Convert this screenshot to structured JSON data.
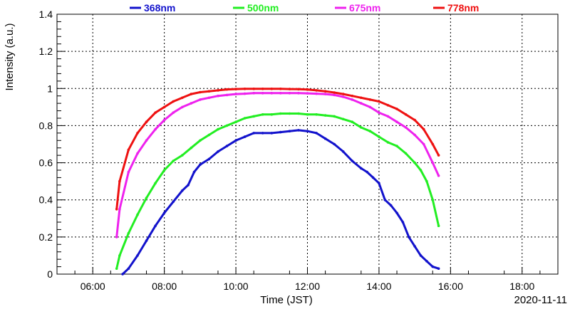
{
  "chart_data": {
    "type": "scatter",
    "xlabel": "Time (JST)",
    "ylabel": "Intensity (a.u.)",
    "date_label": "2020-11-11",
    "xlim": [
      "05:00",
      "19:00"
    ],
    "ylim": [
      0,
      1.4
    ],
    "x_ticks": [
      "06:00",
      "08:00",
      "10:00",
      "12:00",
      "14:00",
      "16:00",
      "18:00"
    ],
    "y_ticks": [
      "0",
      "0.2",
      "0.4",
      "0.6",
      "0.8",
      "1",
      "1.2",
      "1.4"
    ],
    "grid": true,
    "legend_position": "top",
    "series": [
      {
        "name": "368nm",
        "color": "#1212cc",
        "points": [
          [
            "06:50",
            0.0
          ],
          [
            "07:00",
            0.03
          ],
          [
            "07:15",
            0.1
          ],
          [
            "07:30",
            0.18
          ],
          [
            "07:45",
            0.26
          ],
          [
            "08:00",
            0.33
          ],
          [
            "08:15",
            0.39
          ],
          [
            "08:30",
            0.45
          ],
          [
            "08:40",
            0.48
          ],
          [
            "08:50",
            0.55
          ],
          [
            "09:00",
            0.59
          ],
          [
            "09:15",
            0.62
          ],
          [
            "09:30",
            0.66
          ],
          [
            "09:45",
            0.69
          ],
          [
            "10:00",
            0.72
          ],
          [
            "10:15",
            0.74
          ],
          [
            "10:30",
            0.76
          ],
          [
            "10:45",
            0.76
          ],
          [
            "11:00",
            0.76
          ],
          [
            "11:15",
            0.765
          ],
          [
            "11:30",
            0.77
          ],
          [
            "11:45",
            0.775
          ],
          [
            "12:00",
            0.77
          ],
          [
            "12:15",
            0.76
          ],
          [
            "12:30",
            0.73
          ],
          [
            "12:45",
            0.7
          ],
          [
            "13:00",
            0.66
          ],
          [
            "13:15",
            0.61
          ],
          [
            "13:30",
            0.57
          ],
          [
            "13:40",
            0.55
          ],
          [
            "13:50",
            0.52
          ],
          [
            "14:00",
            0.49
          ],
          [
            "14:10",
            0.4
          ],
          [
            "14:20",
            0.37
          ],
          [
            "14:30",
            0.33
          ],
          [
            "14:40",
            0.28
          ],
          [
            "14:50",
            0.2
          ],
          [
            "15:00",
            0.15
          ],
          [
            "15:10",
            0.1
          ],
          [
            "15:20",
            0.07
          ],
          [
            "15:30",
            0.04
          ],
          [
            "15:40",
            0.03
          ]
        ]
      },
      {
        "name": "500nm",
        "color": "#22ee22",
        "points": [
          [
            "06:40",
            0.03
          ],
          [
            "06:45",
            0.1
          ],
          [
            "07:00",
            0.22
          ],
          [
            "07:15",
            0.32
          ],
          [
            "07:30",
            0.41
          ],
          [
            "07:45",
            0.49
          ],
          [
            "08:00",
            0.56
          ],
          [
            "08:15",
            0.61
          ],
          [
            "08:30",
            0.64
          ],
          [
            "08:45",
            0.68
          ],
          [
            "09:00",
            0.72
          ],
          [
            "09:15",
            0.75
          ],
          [
            "09:30",
            0.78
          ],
          [
            "09:45",
            0.8
          ],
          [
            "10:00",
            0.82
          ],
          [
            "10:15",
            0.84
          ],
          [
            "10:30",
            0.85
          ],
          [
            "10:45",
            0.86
          ],
          [
            "11:00",
            0.86
          ],
          [
            "11:15",
            0.865
          ],
          [
            "11:30",
            0.865
          ],
          [
            "11:45",
            0.865
          ],
          [
            "12:00",
            0.86
          ],
          [
            "12:15",
            0.86
          ],
          [
            "12:30",
            0.855
          ],
          [
            "12:45",
            0.85
          ],
          [
            "13:00",
            0.835
          ],
          [
            "13:15",
            0.82
          ],
          [
            "13:30",
            0.79
          ],
          [
            "13:45",
            0.77
          ],
          [
            "14:00",
            0.74
          ],
          [
            "14:15",
            0.71
          ],
          [
            "14:30",
            0.69
          ],
          [
            "14:45",
            0.65
          ],
          [
            "15:00",
            0.6
          ],
          [
            "15:10",
            0.56
          ],
          [
            "15:20",
            0.5
          ],
          [
            "15:30",
            0.4
          ],
          [
            "15:40",
            0.26
          ]
        ]
      },
      {
        "name": "675nm",
        "color": "#ee22ee",
        "points": [
          [
            "06:40",
            0.2
          ],
          [
            "06:45",
            0.35
          ],
          [
            "07:00",
            0.55
          ],
          [
            "07:15",
            0.65
          ],
          [
            "07:30",
            0.72
          ],
          [
            "07:45",
            0.78
          ],
          [
            "08:00",
            0.83
          ],
          [
            "08:15",
            0.87
          ],
          [
            "08:30",
            0.9
          ],
          [
            "08:45",
            0.92
          ],
          [
            "09:00",
            0.94
          ],
          [
            "09:15",
            0.95
          ],
          [
            "09:30",
            0.96
          ],
          [
            "09:45",
            0.965
          ],
          [
            "10:00",
            0.97
          ],
          [
            "10:15",
            0.972
          ],
          [
            "10:30",
            0.975
          ],
          [
            "10:45",
            0.975
          ],
          [
            "11:00",
            0.975
          ],
          [
            "11:15",
            0.975
          ],
          [
            "11:30",
            0.975
          ],
          [
            "11:45",
            0.975
          ],
          [
            "12:00",
            0.974
          ],
          [
            "12:15",
            0.972
          ],
          [
            "12:30",
            0.97
          ],
          [
            "12:45",
            0.965
          ],
          [
            "13:00",
            0.955
          ],
          [
            "13:15",
            0.94
          ],
          [
            "13:30",
            0.92
          ],
          [
            "13:45",
            0.9
          ],
          [
            "14:00",
            0.87
          ],
          [
            "14:15",
            0.85
          ],
          [
            "14:30",
            0.82
          ],
          [
            "14:45",
            0.79
          ],
          [
            "15:00",
            0.75
          ],
          [
            "15:15",
            0.7
          ],
          [
            "15:30",
            0.6
          ],
          [
            "15:40",
            0.53
          ]
        ]
      },
      {
        "name": "778nm",
        "color": "#ee1111",
        "points": [
          [
            "06:40",
            0.35
          ],
          [
            "06:45",
            0.5
          ],
          [
            "07:00",
            0.67
          ],
          [
            "07:15",
            0.76
          ],
          [
            "07:30",
            0.82
          ],
          [
            "07:45",
            0.87
          ],
          [
            "08:00",
            0.9
          ],
          [
            "08:15",
            0.93
          ],
          [
            "08:30",
            0.95
          ],
          [
            "08:45",
            0.97
          ],
          [
            "09:00",
            0.98
          ],
          [
            "09:15",
            0.985
          ],
          [
            "09:30",
            0.99
          ],
          [
            "09:45",
            0.995
          ],
          [
            "10:00",
            0.997
          ],
          [
            "10:15",
            0.998
          ],
          [
            "10:30",
            0.998
          ],
          [
            "10:45",
            0.998
          ],
          [
            "11:00",
            0.998
          ],
          [
            "11:15",
            0.998
          ],
          [
            "11:30",
            0.997
          ],
          [
            "11:45",
            0.996
          ],
          [
            "12:00",
            0.994
          ],
          [
            "12:15",
            0.99
          ],
          [
            "12:30",
            0.985
          ],
          [
            "12:45",
            0.978
          ],
          [
            "13:00",
            0.97
          ],
          [
            "13:15",
            0.96
          ],
          [
            "13:30",
            0.95
          ],
          [
            "13:45",
            0.94
          ],
          [
            "14:00",
            0.93
          ],
          [
            "14:15",
            0.91
          ],
          [
            "14:30",
            0.89
          ],
          [
            "14:45",
            0.86
          ],
          [
            "15:00",
            0.83
          ],
          [
            "15:15",
            0.78
          ],
          [
            "15:30",
            0.7
          ],
          [
            "15:40",
            0.64
          ]
        ]
      }
    ]
  }
}
